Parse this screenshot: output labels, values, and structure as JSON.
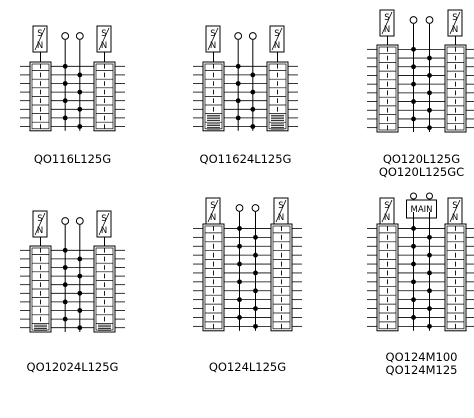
{
  "sn_label_top": "S",
  "sn_label_bottom": "N",
  "main_label": "MAIN",
  "panels": [
    {
      "id": "p1",
      "name": "QO116L125G",
      "name2": "",
      "dual": true,
      "terminals": 2,
      "has_main": false
    },
    {
      "id": "p2",
      "name": "QO11624L125G",
      "name2": "",
      "dual": true,
      "terminals": 2,
      "has_main": false
    },
    {
      "id": "p3",
      "name": "QO120L125G",
      "name2": "QO120L125GC",
      "dual": true,
      "terminals": 2,
      "has_main": false
    },
    {
      "id": "p4",
      "name": "QO12024L125G",
      "name2": "",
      "dual": true,
      "terminals": 2,
      "has_main": false
    },
    {
      "id": "p5",
      "name": "QO124L125G",
      "name2": "",
      "dual": true,
      "terminals": 2,
      "has_main": false
    },
    {
      "id": "p6",
      "name": "QO124M100",
      "name2": "QO124M125",
      "dual": true,
      "terminals": 2,
      "has_main": true
    }
  ]
}
